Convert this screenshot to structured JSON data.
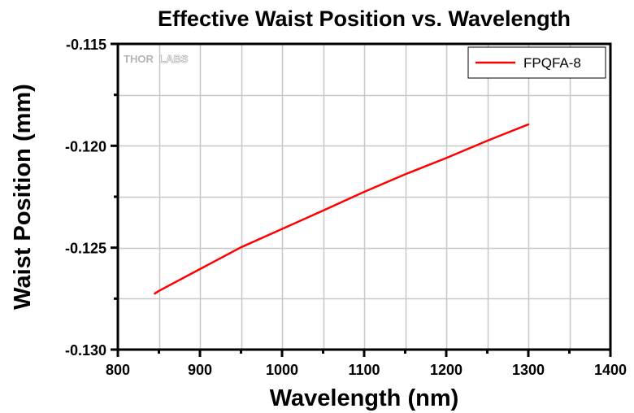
{
  "chart_data": {
    "type": "line",
    "title": "Effective Waist Position vs. Wavelength",
    "xlabel": "Wavelength (nm)",
    "ylabel": "Waist Position (mm)",
    "xlim": [
      800,
      1400
    ],
    "ylim": [
      -0.13,
      -0.115
    ],
    "x_ticks": [
      800,
      900,
      1000,
      1100,
      1200,
      1300,
      1400
    ],
    "x_tick_labels": [
      "800",
      "900",
      "1000",
      "1100",
      "1200",
      "1300",
      "1400"
    ],
    "x_minor_step": 50,
    "y_ticks": [
      -0.13,
      -0.125,
      -0.12,
      -0.115
    ],
    "y_tick_labels": [
      "-0.130",
      "-0.125",
      "-0.120",
      "-0.115"
    ],
    "y_minor_step": 0.0025,
    "grid": true,
    "legend_position": "top-right",
    "watermark": {
      "solid": "THOR",
      "outline": "LABS"
    },
    "series": [
      {
        "name": "FPQFA-8",
        "color": "#ff0000",
        "x": [
          845,
          850,
          900,
          950,
          1000,
          1050,
          1100,
          1150,
          1200,
          1250,
          1300
        ],
        "y": [
          -0.12725,
          -0.12712,
          -0.12605,
          -0.12498,
          -0.12408,
          -0.12318,
          -0.12226,
          -0.1214,
          -0.1206,
          -0.11975,
          -0.11895
        ]
      }
    ]
  },
  "colors": {
    "axis": "#000000",
    "grid": "#c8c8c8",
    "series": "#ff0000",
    "watermark": "#b4b4b4",
    "background": "#ffffff"
  }
}
